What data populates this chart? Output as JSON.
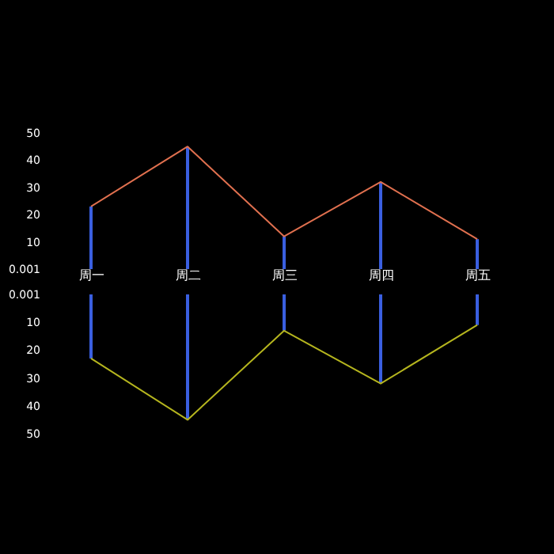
{
  "chart_data": [
    {
      "type": "line",
      "categories": [
        "周一",
        "周二",
        "周三",
        "周四",
        "周五"
      ],
      "ylim": [
        0.001,
        50
      ],
      "yticks": [
        0.001,
        10,
        20,
        30,
        40,
        50
      ],
      "marker": "none",
      "series": [
        {
          "type": "bar",
          "color": "#3a5fe0",
          "values": [
            23,
            45,
            12,
            32,
            11
          ]
        },
        {
          "color": "#e0704f",
          "values": [
            23,
            45,
            12,
            32,
            11
          ]
        }
      ]
    },
    {
      "type": "line",
      "categories": [
        null,
        null,
        null,
        null,
        null
      ],
      "ylim": [
        50,
        0.001
      ],
      "yticks": [
        0.001,
        10,
        20,
        30,
        40,
        50
      ],
      "tick_labels": "y",
      "marker": "none",
      "series": [
        {
          "type": "bar",
          "color": "#3a5fe0",
          "values": [
            23,
            45,
            13,
            32,
            11
          ]
        },
        {
          "color": "#b5b51e",
          "values": [
            23,
            45,
            13,
            32,
            11
          ]
        }
      ]
    }
  ]
}
